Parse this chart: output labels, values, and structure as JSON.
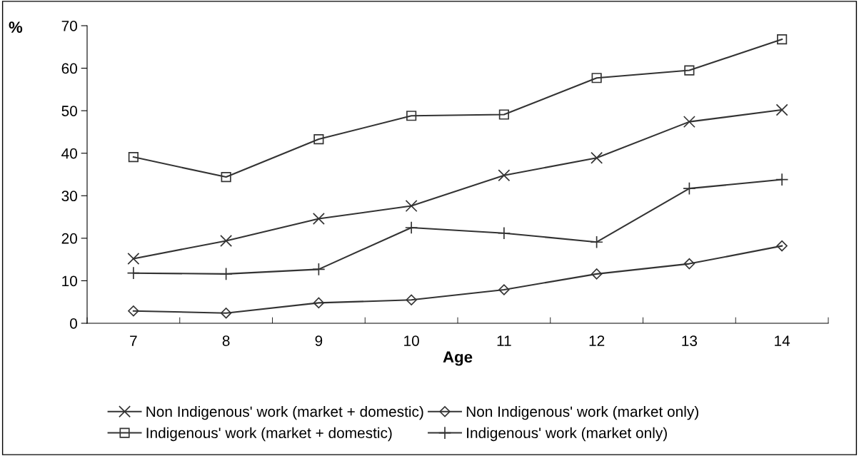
{
  "chart_data": {
    "type": "line",
    "xlabel": "Age",
    "ylabel": "%",
    "categories": [
      "7",
      "8",
      "9",
      "10",
      "11",
      "12",
      "13",
      "14"
    ],
    "series": [
      {
        "name": "Non Indigenous' work (market + domestic)",
        "color": "#333333",
        "marker": "cross",
        "values": [
          15.2,
          19.4,
          24.6,
          27.6,
          34.8,
          38.9,
          47.4,
          50.2
        ]
      },
      {
        "name": "Indigenous' work (market + domestic)",
        "color": "#333333",
        "marker": "square",
        "values": [
          39.1,
          34.4,
          43.3,
          48.8,
          49.1,
          57.7,
          59.5,
          66.8
        ]
      },
      {
        "name": "Non Indigenous' work (market only)",
        "color": "#333333",
        "marker": "diamond",
        "values": [
          2.9,
          2.4,
          4.8,
          5.5,
          7.9,
          11.6,
          14.0,
          18.2
        ]
      },
      {
        "name": "Indigenous' work (market only)",
        "color": "#333333",
        "marker": "plus",
        "values": [
          11.8,
          11.6,
          12.7,
          22.5,
          21.2,
          19.1,
          31.7,
          33.8
        ]
      }
    ],
    "ylim": [
      0,
      70
    ],
    "yticks": [
      0,
      10,
      20,
      30,
      40,
      50,
      60,
      70
    ],
    "grid": false,
    "legend": "bottom",
    "line_style": "solid"
  }
}
